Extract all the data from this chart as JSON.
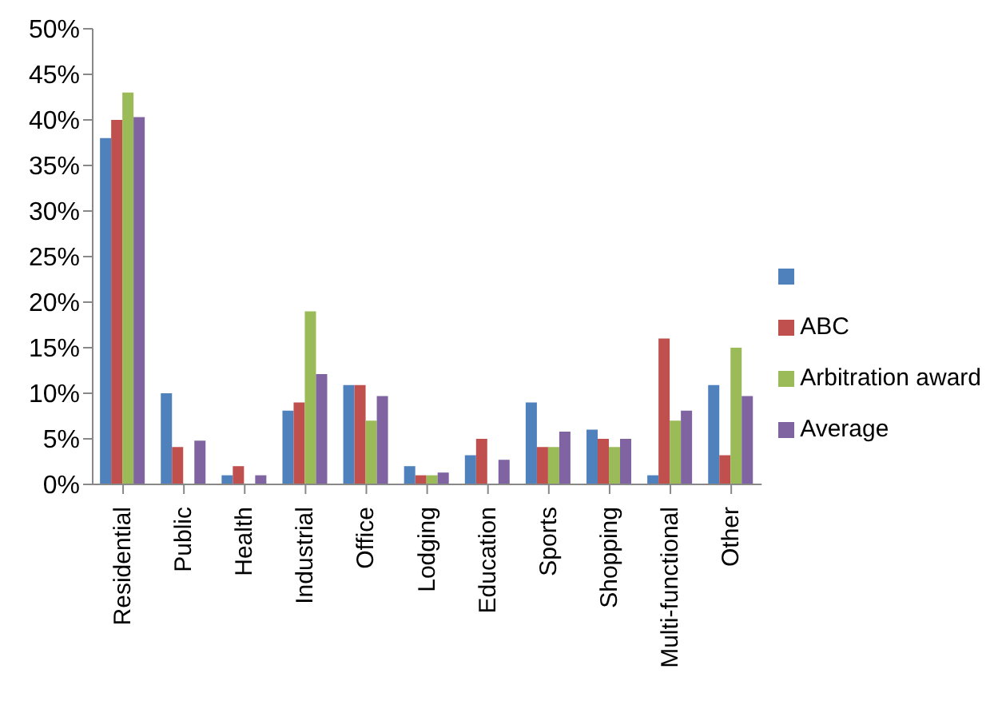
{
  "chart_data": {
    "type": "bar",
    "categories": [
      "Residential",
      "Public",
      "Health",
      "Industrial",
      "Office",
      "Lodging",
      "Education",
      "Sports",
      "Shopping",
      "Multi-functional",
      "Other"
    ],
    "series": [
      {
        "color": "#4f81bd",
        "values": [
          38,
          10,
          1,
          8.1,
          10.9,
          2,
          3.2,
          9,
          6,
          1,
          10.9
        ]
      },
      {
        "name": "ABC",
        "color": "#c0504d",
        "values": [
          40,
          4.1,
          2,
          9,
          10.9,
          1,
          5,
          4.1,
          5,
          16,
          3.2
        ]
      },
      {
        "name": "Arbitration award",
        "color": "#9bbb59",
        "values": [
          43,
          0,
          0,
          19,
          7,
          1,
          0,
          4.1,
          4.1,
          7,
          15
        ]
      },
      {
        "name": "Average",
        "color": "#8064a2",
        "values": [
          40.3,
          4.8,
          1,
          12.1,
          9.7,
          1.3,
          2.7,
          5.8,
          5,
          8.1,
          9.7
        ]
      }
    ],
    "ylim": [
      0,
      50
    ],
    "yticks": [
      {
        "value": 0,
        "label": "0%"
      },
      {
        "value": 5,
        "label": "5%"
      },
      {
        "value": 10,
        "label": "10%"
      },
      {
        "value": 15,
        "label": "15%"
      },
      {
        "value": 20,
        "label": "20%"
      },
      {
        "value": 25,
        "label": "25%"
      },
      {
        "value": 30,
        "label": "30%"
      },
      {
        "value": 35,
        "label": "35%"
      },
      {
        "value": 40,
        "label": "40%"
      },
      {
        "value": 45,
        "label": "45%"
      },
      {
        "value": 50,
        "label": "50%"
      }
    ],
    "grid": false,
    "legend": "right"
  }
}
